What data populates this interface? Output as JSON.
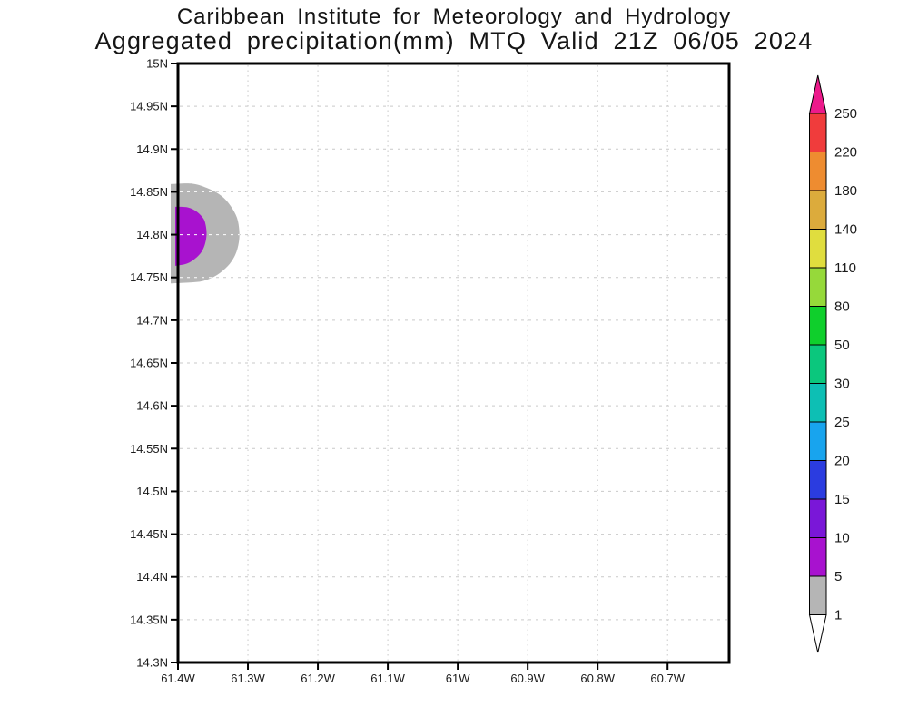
{
  "header": {
    "line1": "Caribbean Institute for Meteorology and Hydrology",
    "line2": "Aggregated precipitation(mm) MTQ Valid 21Z 06/05 2024"
  },
  "chart_data": {
    "type": "heatmap",
    "title": "Caribbean Institute for Meteorology and Hydrology",
    "subtitle": "Aggregated precipitation(mm) MTQ Valid 21Z 06/05 2024",
    "units": "mm",
    "region": "MTQ",
    "valid_time": "21Z 06/05 2024",
    "grid": true,
    "lon_range_w": [
      61.4,
      60.612
    ],
    "lat_range_n": [
      15.0,
      14.3
    ],
    "lon_ticks": [
      {
        "value": 61.4,
        "label": "61.4W"
      },
      {
        "value": 61.3,
        "label": "61.3W"
      },
      {
        "value": 61.2,
        "label": "61.2W"
      },
      {
        "value": 61.1,
        "label": "61.1W"
      },
      {
        "value": 61.0,
        "label": "61W"
      },
      {
        "value": 60.9,
        "label": "60.9W"
      },
      {
        "value": 60.8,
        "label": "60.8W"
      },
      {
        "value": 60.7,
        "label": "60.7W"
      }
    ],
    "lat_ticks": [
      {
        "value": 15.0,
        "label": "15N"
      },
      {
        "value": 14.95,
        "label": "14.95N"
      },
      {
        "value": 14.9,
        "label": "14.9N"
      },
      {
        "value": 14.85,
        "label": "14.85N"
      },
      {
        "value": 14.8,
        "label": "14.8N"
      },
      {
        "value": 14.75,
        "label": "14.75N"
      },
      {
        "value": 14.7,
        "label": "14.7N"
      },
      {
        "value": 14.65,
        "label": "14.65N"
      },
      {
        "value": 14.6,
        "label": "14.6N"
      },
      {
        "value": 14.55,
        "label": "14.55N"
      },
      {
        "value": 14.5,
        "label": "14.5N"
      },
      {
        "value": 14.45,
        "label": "14.45N"
      },
      {
        "value": 14.4,
        "label": "14.4N"
      },
      {
        "value": 14.35,
        "label": "14.35N"
      },
      {
        "value": 14.3,
        "label": "14.3N"
      }
    ],
    "colorbar": {
      "levels": [
        1,
        5,
        10,
        15,
        20,
        25,
        30,
        50,
        80,
        110,
        140,
        180,
        220,
        250
      ],
      "below_color": "#ffffff",
      "band_colors": [
        "#b5b5b5",
        "#a812cf",
        "#7a17d8",
        "#2b3ce0",
        "#18a4ee",
        "#0dbfb4",
        "#0bc77d",
        "#0fcf2c",
        "#96d93a",
        "#e0dd3e",
        "#dcab3c",
        "#ee8c30",
        "#f03c3c"
      ],
      "above_color": "#ec1a8b"
    },
    "filled_contours": [
      {
        "min_mm": 1,
        "max_mm": 5,
        "color": "#b5b5b5",
        "points_lon_lat": [
          [
            61.4104,
            14.859
          ],
          [
            61.3792,
            14.8595
          ],
          [
            61.3559,
            14.8536
          ],
          [
            61.3377,
            14.8452
          ],
          [
            61.3247,
            14.8335
          ],
          [
            61.3156,
            14.8197
          ],
          [
            61.3124,
            14.8049
          ],
          [
            61.313,
            14.7911
          ],
          [
            61.3182,
            14.7762
          ],
          [
            61.3286,
            14.7635
          ],
          [
            61.3442,
            14.7529
          ],
          [
            61.3636,
            14.746
          ],
          [
            61.3857,
            14.744
          ],
          [
            61.4104,
            14.743
          ]
        ]
      },
      {
        "min_mm": 5,
        "max_mm": 10,
        "color": "#a812cf",
        "points_lon_lat": [
          [
            61.4039,
            14.8325
          ],
          [
            61.3857,
            14.8318
          ],
          [
            61.3727,
            14.8266
          ],
          [
            61.3636,
            14.8187
          ],
          [
            61.3604,
            14.8112
          ],
          [
            61.3591,
            14.8006
          ],
          [
            61.3611,
            14.79
          ],
          [
            61.3662,
            14.7799
          ],
          [
            61.3753,
            14.7721
          ],
          [
            61.387,
            14.7662
          ],
          [
            61.4039,
            14.7635
          ]
        ]
      }
    ]
  },
  "style": {
    "grid_color": "#c9c9c9",
    "grid_color_over_shading": "#ffffff",
    "axis_color": "#000000",
    "text_color": "#1a1a1a"
  }
}
